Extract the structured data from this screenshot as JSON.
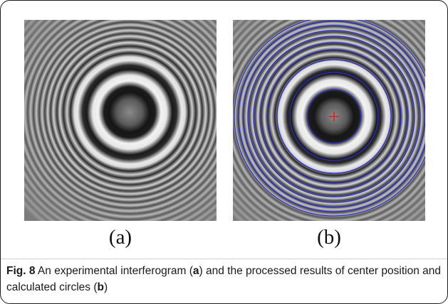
{
  "figure": {
    "panel_a_label": "(a)",
    "panel_b_label": "(b)",
    "caption_prefix": "Fig. 8",
    "caption_part1": " An experimental interferogram (",
    "caption_bold_a": "a",
    "caption_part2": ") and the processed results of center position and calculated circles (",
    "caption_bold_b": "b",
    "caption_part3": ")"
  },
  "colors": {
    "fitted_circle": "#2b2bd6",
    "center_marker": "#e01818"
  }
}
